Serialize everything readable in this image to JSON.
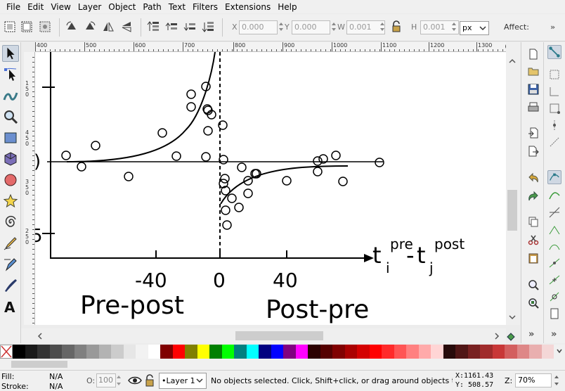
{
  "menu": [
    "File",
    "Edit",
    "View",
    "Layer",
    "Object",
    "Path",
    "Text",
    "Filters",
    "Extensions",
    "Help"
  ],
  "toolbar": {
    "x_label": "X",
    "x_value": "0.000",
    "y_label": "Y",
    "y_value": "0.000",
    "w_label": "W",
    "w_value": "0.001",
    "h_label": "H",
    "h_value": "0.001",
    "unit": "px",
    "affect_label": "Affect:"
  },
  "ruler": {
    "h_labels": [
      "400",
      "500",
      "600",
      "700",
      "800",
      "900",
      "1000",
      "1100",
      "1200",
      "1300"
    ],
    "v_labels": [
      "1",
      "5",
      "0",
      "4",
      "5",
      "0",
      "3",
      "5",
      "0",
      "2",
      "5",
      "0"
    ]
  },
  "drawing": {
    "axis_title_part1": "t",
    "axis_sub_i": "i",
    "axis_sup_pre": "pre",
    "axis_minus": "-",
    "axis_title_part2": "t",
    "axis_sub_j": "j",
    "axis_sup_post": "post",
    "tick_neg40": "-40",
    "tick_0": "0",
    "tick_40": "40",
    "label_left": "Pre-post",
    "label_right": "Post-pre",
    "partial_glyph_top": ")",
    "partial_glyph_bottom": "5"
  },
  "palette_colors": [
    "#000000",
    "#1a1a1a",
    "#333333",
    "#4d4d4d",
    "#666666",
    "#808080",
    "#999999",
    "#b3b3b3",
    "#cccccc",
    "#e6e6e6",
    "#f2f2f2",
    "#ffffff",
    "#800000",
    "#ff0000",
    "#808000",
    "#ffff00",
    "#008000",
    "#00ff00",
    "#008080",
    "#00ffff",
    "#000080",
    "#0000ff",
    "#800080",
    "#ff00ff",
    "#2b0000",
    "#550000",
    "#800000",
    "#aa0000",
    "#d40000",
    "#ff0000",
    "#ff2a2a",
    "#ff5555",
    "#ff8080",
    "#ffaaaa",
    "#ffd5d5",
    "#280b0b",
    "#501616",
    "#782121",
    "#a02c2c",
    "#c83737",
    "#d35f5f",
    "#de8787",
    "#e9afaf",
    "#f4d7d7"
  ],
  "status": {
    "fill_label": "Fill:",
    "fill_value": "N/A",
    "stroke_label": "Stroke:",
    "stroke_value": "N/A",
    "opacity_label": "O:",
    "opacity_value": "100",
    "layer": "•Layer 1",
    "message": "No objects selected. Click, Shift+click, or drag around objects to s",
    "x_label": "X:",
    "x_value": "1161.43",
    "y_label": "Y:",
    "y_value": "508.57",
    "zoom_label": "Z:",
    "zoom_value": "70%"
  }
}
